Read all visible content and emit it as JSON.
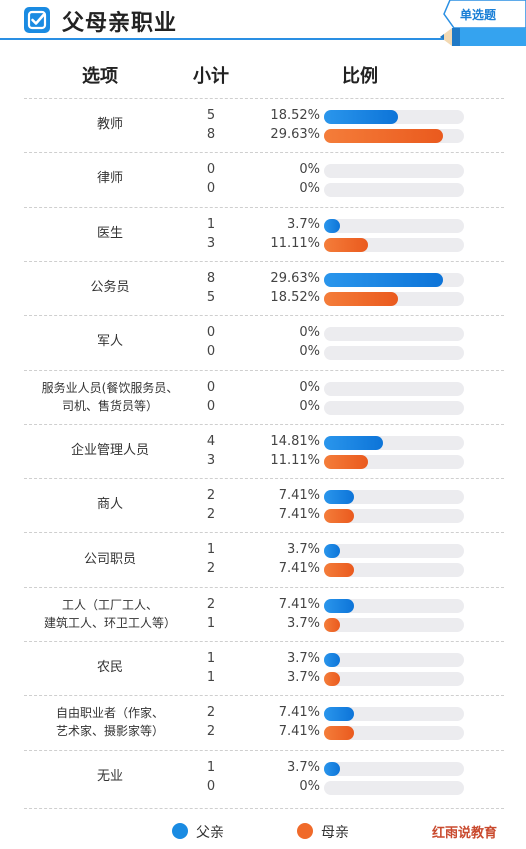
{
  "header": {
    "title": "父母亲职业",
    "badge": "单选题",
    "accent_color": "#1a8be2"
  },
  "columns": {
    "option": "选项",
    "subtotal": "小计",
    "ratio": "比例"
  },
  "legend": {
    "father": "父亲",
    "mother": "母亲"
  },
  "watermark": "红雨说教育",
  "chart_data": {
    "type": "bar",
    "orientation": "horizontal",
    "categories": [
      "教师",
      "律师",
      "医生",
      "公务员",
      "军人",
      "服务业人员(餐饮服务员、司机、售货员等)",
      "企业管理人员",
      "商人",
      "公司职员",
      "工人（工厂工人、建筑工人、环卫工人等）",
      "农民",
      "自由职业者（作家、艺术家、摄影家等）",
      "无业"
    ],
    "category_lines": [
      [
        "教师"
      ],
      [
        "律师"
      ],
      [
        "医生"
      ],
      [
        "公务员"
      ],
      [
        "军人"
      ],
      [
        "服务业人员(餐饮服务员、",
        "司机、售货员等）"
      ],
      [
        "企业管理人员"
      ],
      [
        "商人"
      ],
      [
        "公司职员"
      ],
      [
        "工人（工厂工人、",
        "建筑工人、环卫工人等）"
      ],
      [
        "农民"
      ],
      [
        "自由职业者（作家、",
        "艺术家、摄影家等）"
      ],
      [
        "无业"
      ]
    ],
    "series": [
      {
        "name": "父亲",
        "color": "#1a8be2",
        "counts": [
          5,
          0,
          1,
          8,
          0,
          0,
          4,
          2,
          1,
          2,
          1,
          2,
          1
        ],
        "percent_labels": [
          "18.52%",
          "0%",
          "3.7%",
          "29.63%",
          "0%",
          "0%",
          "14.81%",
          "7.41%",
          "3.7%",
          "7.41%",
          "3.7%",
          "7.41%",
          "3.7%"
        ],
        "values": [
          18.52,
          0,
          3.7,
          29.63,
          0,
          0,
          14.81,
          7.41,
          3.7,
          7.41,
          3.7,
          7.41,
          3.7
        ]
      },
      {
        "name": "母亲",
        "color": "#f06a2a",
        "counts": [
          8,
          0,
          3,
          5,
          0,
          0,
          3,
          2,
          2,
          1,
          1,
          2,
          0
        ],
        "percent_labels": [
          "29.63%",
          "0%",
          "11.11%",
          "18.52%",
          "0%",
          "0%",
          "11.11%",
          "7.41%",
          "7.41%",
          "3.7%",
          "3.7%",
          "7.41%",
          "0%"
        ],
        "values": [
          29.63,
          0,
          11.11,
          18.52,
          0,
          0,
          11.11,
          7.41,
          7.41,
          3.7,
          3.7,
          7.41,
          0
        ]
      }
    ],
    "xlim": [
      0,
      35
    ],
    "unit": "%"
  }
}
